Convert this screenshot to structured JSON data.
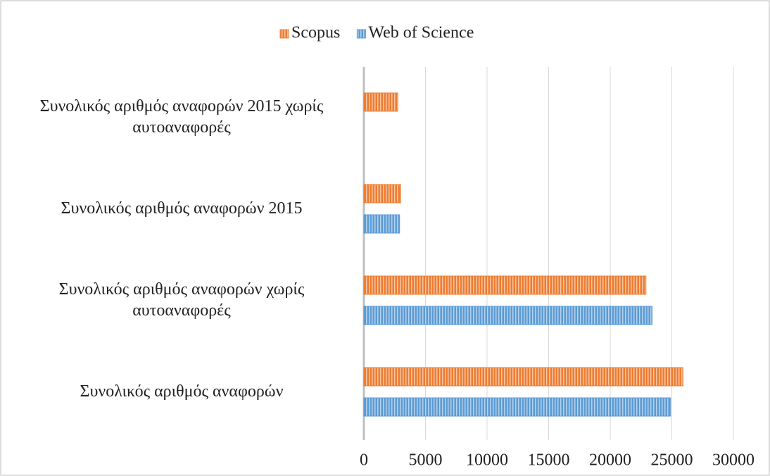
{
  "chart_data": {
    "type": "hbar",
    "categories": [
      "Συνολικός αριθμός αναφορών 2015 χωρίς αυτοαναφορές",
      "Συνολικός αριθμός αναφορών 2015",
      "Συνολικός αριθμός αναφορών χωρίς αυτοαναφορές",
      "Συνολικός αριθμός αναφορών"
    ],
    "series": [
      {
        "name": "Scopus",
        "color": "#ed7d31",
        "values": [
          2750,
          3000,
          22900,
          25900
        ]
      },
      {
        "name": "Web of Science",
        "color": "#5b9bd5",
        "values": [
          null,
          2900,
          23400,
          24900
        ]
      }
    ],
    "xlim": [
      0,
      30000
    ],
    "xticks": [
      0,
      5000,
      10000,
      15000,
      20000,
      25000,
      30000
    ],
    "grid": true,
    "legend": "top"
  }
}
